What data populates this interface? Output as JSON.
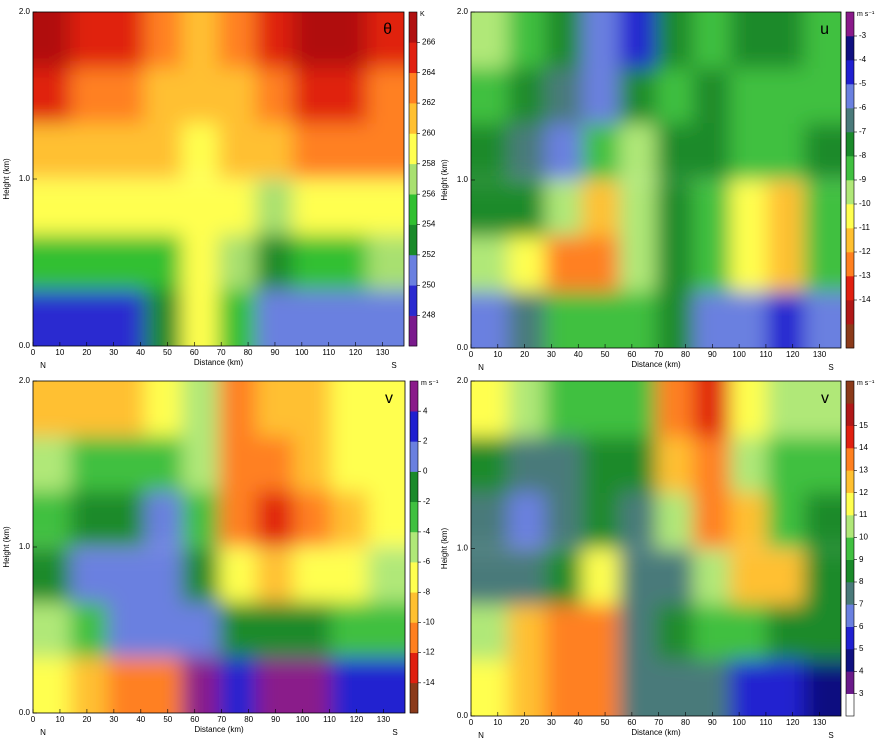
{
  "chart_data": [
    {
      "type": "contour",
      "title": "θ",
      "colorbar_label": "K",
      "xlabel": "Distance (km)",
      "ylabel": "Height (km)",
      "left_label": "N",
      "right_label": "S",
      "xlim": [
        0,
        138
      ],
      "ylim": [
        0,
        2
      ],
      "xticks": [
        0,
        10,
        20,
        30,
        40,
        50,
        60,
        70,
        80,
        90,
        100,
        110,
        120,
        130
      ],
      "yticks": [
        {
          "value": 0,
          "label": "0.0"
        },
        {
          "value": 1,
          "label": "1.0"
        },
        {
          "value": 2,
          "label": "2.0"
        }
      ],
      "zlim": [
        246,
        268
      ],
      "zticks": [
        248,
        250,
        252,
        254,
        256,
        258,
        260,
        262,
        264,
        266
      ],
      "colors": [
        "#7a1a8c",
        "#2a2ad0",
        "#6a80e0",
        "#1a8a2a",
        "#30c030",
        "#a8e070",
        "#ffff50",
        "#ffc030",
        "#ff8020",
        "#e02010",
        "#b01010"
      ],
      "x": [
        6.9,
        20.7,
        34.5,
        48.3,
        62.1,
        75.9,
        89.7,
        103.5,
        117.3,
        131.1
      ],
      "y": [
        1.83,
        1.5,
        1.17,
        0.83,
        0.5,
        0.17
      ],
      "z": [
        [
          266,
          265,
          264,
          263,
          261,
          263,
          265,
          266,
          266,
          265
        ],
        [
          264,
          263,
          262,
          261,
          260,
          261,
          263,
          264,
          264,
          263
        ],
        [
          261,
          261,
          260,
          260,
          259,
          260,
          261,
          262,
          262,
          262
        ],
        [
          258,
          258,
          258,
          258,
          259,
          258,
          257,
          258,
          259,
          259
        ],
        [
          254,
          254,
          254,
          255,
          259,
          256,
          253,
          254,
          255,
          256
        ],
        [
          249,
          248,
          248,
          252,
          259,
          254,
          251,
          250,
          250,
          251
        ]
      ]
    },
    {
      "type": "contour",
      "title": "u",
      "colorbar_label": "m s⁻¹",
      "xlabel": "Distance (km)",
      "ylabel": "Height (km)",
      "left_label": "N",
      "right_label": "S",
      "xlim": [
        0,
        138
      ],
      "ylim": [
        0,
        2
      ],
      "xticks": [
        0,
        10,
        20,
        30,
        40,
        50,
        60,
        70,
        80,
        90,
        100,
        110,
        120,
        130
      ],
      "yticks": [
        {
          "value": 0,
          "label": "0.0"
        },
        {
          "value": 1,
          "label": "1.0"
        },
        {
          "value": 2,
          "label": "2.0"
        }
      ],
      "zlim": [
        -16,
        -2
      ],
      "zticks": [
        -14,
        -13,
        -12,
        -11,
        -10,
        -9,
        -8,
        -7,
        -6,
        -5,
        -4,
        -3
      ],
      "colors": [
        "#8b3a1a",
        "#b01818",
        "#e02010",
        "#ff8020",
        "#ffc030",
        "#ffff50",
        "#b0e878",
        "#40c040",
        "#1a8a2a",
        "#4a7a7a",
        "#6a80e0",
        "#2020d0",
        "#101080",
        "#8a1a8a"
      ],
      "x": [
        6.9,
        20.7,
        34.5,
        48.3,
        62.1,
        75.9,
        89.7,
        103.5,
        117.3,
        131.1
      ],
      "y": [
        1.83,
        1.5,
        1.17,
        0.83,
        0.5,
        0.17
      ],
      "z": [
        [
          -10,
          -9,
          -8,
          -6,
          -5,
          -8,
          -9,
          -8,
          -8,
          -9
        ],
        [
          -9,
          -8,
          -7,
          -6,
          -8,
          -9,
          -8,
          -9,
          -9,
          -9
        ],
        [
          -8,
          -7,
          -6,
          -9,
          -10,
          -8,
          -8,
          -9,
          -9,
          -8
        ],
        [
          -8,
          -8,
          -10,
          -12,
          -10,
          -8,
          -9,
          -11,
          -12,
          -9
        ],
        [
          -10,
          -11,
          -13,
          -13,
          -10,
          -8,
          -9,
          -11,
          -12,
          -9
        ],
        [
          -6,
          -7,
          -9,
          -9,
          -9,
          -8,
          -6,
          -6,
          -5,
          -6
        ]
      ]
    },
    {
      "type": "contour",
      "title": "v",
      "colorbar_label": "m s⁻¹",
      "xlabel": "Distance (km)",
      "ylabel": "Height (km)",
      "left_label": "N",
      "right_label": "S",
      "xlim": [
        0,
        138
      ],
      "ylim": [
        0,
        2
      ],
      "xticks": [
        0,
        10,
        20,
        30,
        40,
        50,
        60,
        70,
        80,
        90,
        100,
        110,
        120,
        130
      ],
      "yticks": [
        {
          "value": 0,
          "label": "0.0"
        },
        {
          "value": 1,
          "label": "1.0"
        },
        {
          "value": 2,
          "label": "2.0"
        }
      ],
      "zlim": [
        -16,
        6
      ],
      "zticks": [
        -14,
        -12,
        -10,
        -8,
        -6,
        -4,
        -2,
        0,
        2,
        4
      ],
      "colors": [
        "#8b3a1a",
        "#e02010",
        "#ff8020",
        "#ffc030",
        "#ffff50",
        "#b0e878",
        "#40c040",
        "#1a8a2a",
        "#6a80e0",
        "#2020d0",
        "#8a1a8a"
      ],
      "x": [
        6.9,
        20.7,
        34.5,
        48.3,
        62.1,
        75.9,
        89.7,
        103.5,
        117.3,
        131.1
      ],
      "y": [
        1.83,
        1.5,
        1.17,
        0.83,
        0.5,
        0.17
      ],
      "z": [
        [
          -9,
          -9,
          -9,
          -8,
          -6,
          -12,
          -10,
          -9,
          -8,
          -8
        ],
        [
          -6,
          -4,
          -4,
          -3,
          -6,
          -12,
          -11,
          -10,
          -8,
          -8
        ],
        [
          -3,
          -2,
          -1,
          0,
          -4,
          -12,
          -13,
          -12,
          -10,
          -8
        ],
        [
          -1,
          0,
          1,
          1,
          -2,
          -8,
          -9,
          -8,
          -7,
          -5
        ],
        [
          -5,
          -4,
          0,
          1,
          0,
          -2,
          -1,
          -2,
          -3,
          -4
        ],
        [
          -8,
          -10,
          -12,
          -11,
          4,
          2,
          4,
          4,
          3,
          2
        ]
      ]
    },
    {
      "type": "contour",
      "title": "v",
      "colorbar_label": "m s⁻¹",
      "xlabel": "Distance (km)",
      "ylabel": "Height (km)",
      "left_label": "N",
      "right_label": "S",
      "xlim": [
        0,
        138
      ],
      "ylim": [
        0,
        2
      ],
      "xticks": [
        0,
        10,
        20,
        30,
        40,
        50,
        60,
        70,
        80,
        90,
        100,
        110,
        120,
        130
      ],
      "yticks": [
        {
          "value": 0,
          "label": "0.0"
        },
        {
          "value": 1,
          "label": "1.0"
        },
        {
          "value": 2,
          "label": "2.0"
        }
      ],
      "zlim": [
        2,
        17
      ],
      "zticks": [
        3,
        4,
        5,
        6,
        7,
        8,
        9,
        10,
        11,
        12,
        13,
        14,
        15
      ],
      "colors": [
        "#ffffff",
        "#6a1a8a",
        "#101080",
        "#2020d0",
        "#6a80e0",
        "#4a7a7a",
        "#1a8a2a",
        "#40c040",
        "#b0e878",
        "#ffff50",
        "#ffc030",
        "#ff8020",
        "#e02010",
        "#b01818",
        "#8b3a1a"
      ],
      "x": [
        6.9,
        20.7,
        34.5,
        48.3,
        62.1,
        75.9,
        89.7,
        103.5,
        117.3,
        131.1
      ],
      "y": [
        1.83,
        1.5,
        1.17,
        0.83,
        0.5,
        0.17
      ],
      "z": [
        [
          11,
          10,
          9,
          9,
          9,
          13,
          14,
          11,
          10,
          10
        ],
        [
          8,
          7,
          7,
          8,
          8,
          12,
          13,
          10,
          9,
          9
        ],
        [
          7,
          6,
          7,
          8,
          7,
          10,
          13,
          12,
          9,
          8
        ],
        [
          7,
          7,
          8,
          11,
          7,
          7,
          10,
          12,
          12,
          8
        ],
        [
          10,
          12,
          13,
          13,
          7,
          8,
          9,
          9,
          8,
          8
        ],
        [
          11,
          12,
          13,
          13,
          7,
          7,
          7,
          5,
          5,
          4
        ]
      ]
    }
  ]
}
